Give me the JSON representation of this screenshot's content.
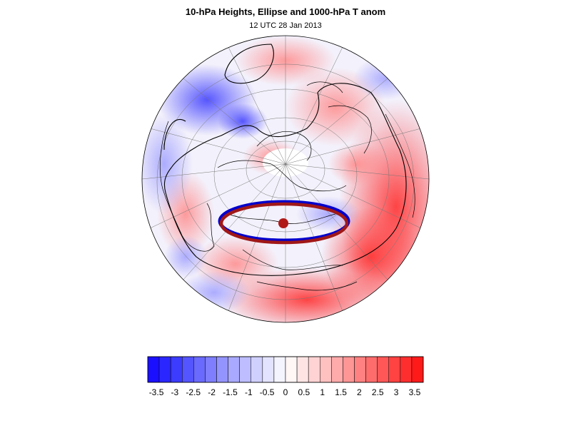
{
  "map": {
    "title": "10-hPa Heights, Ellipse and 1000-hPa T anom",
    "subtitle": "12 UTC 28 Jan 2013",
    "projection": "orthographic polar view",
    "colors": {
      "ellipse_blue": "#0000cc",
      "ellipse_red": "#a01818",
      "contour": "#000000",
      "coast": "#000000",
      "grid": "#777777"
    },
    "colorbar": {
      "tick_labels": [
        "-3.5",
        "-3",
        "-2.5",
        "-2",
        "-1.5",
        "-1",
        "-0.5",
        "0",
        "0.5",
        "1",
        "1.5",
        "2",
        "2.5",
        "3",
        "3.5"
      ],
      "colors": [
        "#1a10ff",
        "#2a26ff",
        "#3c3cff",
        "#5555ff",
        "#6a6aff",
        "#7e7eff",
        "#9494ff",
        "#a9a9ff",
        "#bdbdff",
        "#d0d0ff",
        "#e3e3ff",
        "#f4f4ff",
        "#fff6f6",
        "#ffe4e4",
        "#ffd3d3",
        "#ffc0c0",
        "#ffabab",
        "#ff9696",
        "#ff8181",
        "#ff6c6c",
        "#ff5757",
        "#ff4242",
        "#ff2e2e",
        "#ff1a1a"
      ]
    }
  }
}
